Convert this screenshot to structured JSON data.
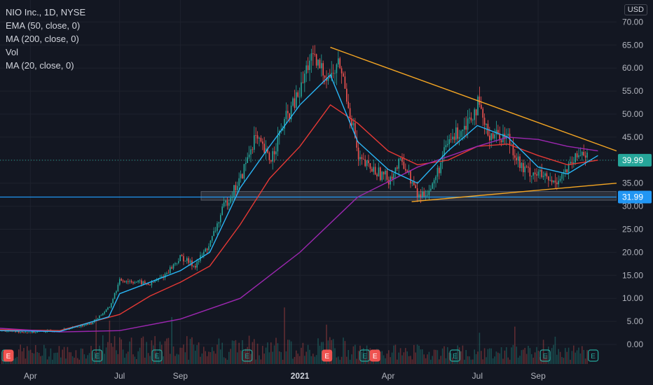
{
  "legend": {
    "title": "NIO Inc., 1D, NYSE",
    "lines": [
      "EMA (50, close, 0)",
      "MA (200, close, 0)",
      "Vol",
      "MA (20, close, 0)"
    ]
  },
  "currency": "USD",
  "colors": {
    "background": "#131722",
    "grid": "#1e222d",
    "up": "#26a69a",
    "down": "#ef5350",
    "ema50": "#e53935",
    "ma200": "#9c27b0",
    "ma20": "#29b6f6",
    "trendline": "#f5a623",
    "hline": "#2196f3",
    "axis_text": "#b2b5be"
  },
  "chart_data": {
    "type": "line",
    "title": "NIO Inc., 1D, NYSE",
    "x_tick_labels": [
      "Apr",
      "Jul",
      "Sep",
      "2021",
      "Apr",
      "Jul",
      "Sep"
    ],
    "x_tick_months": [
      "2020-04",
      "2020-07",
      "2020-09",
      "2021-01",
      "2021-04",
      "2021-07",
      "2021-09"
    ],
    "y_tick_labels": [
      "70.00",
      "65.00",
      "60.00",
      "55.00",
      "50.00",
      "45.00",
      "40.00",
      "35.00",
      "30.00",
      "25.00",
      "20.00",
      "15.00",
      "10.00",
      "5.00",
      "0.00"
    ],
    "ylim": [
      -3.5,
      72
    ],
    "grid": true,
    "price_labels": [
      {
        "label": "39.99",
        "value": 39.99,
        "color": "#26a69a"
      },
      {
        "label": "31.99",
        "value": 31.99,
        "color": "#2196f3"
      }
    ],
    "horizontal_line": 31.99,
    "price_zone": [
      31.3,
      33.2
    ],
    "close_series": {
      "name": "NIO",
      "points": [
        [
          "2020-03",
          3.0
        ],
        [
          "2020-04",
          2.6
        ],
        [
          "2020-05",
          3.1
        ],
        [
          "2020-06",
          4.5
        ],
        [
          "2020-06-20",
          8.0
        ],
        [
          "2020-07",
          14.0
        ],
        [
          "2020-07-20",
          13.5
        ],
        [
          "2020-08",
          13.0
        ],
        [
          "2020-08-15",
          15.0
        ],
        [
          "2020-09",
          19.0
        ],
        [
          "2020-09-15",
          17.0
        ],
        [
          "2020-10",
          22.0
        ],
        [
          "2020-10-15",
          30.0
        ],
        [
          "2020-11",
          36.0
        ],
        [
          "2020-11-15",
          45.0
        ],
        [
          "2020-12",
          40.0
        ],
        [
          "2020-12-15",
          48.0
        ],
        [
          "2021-01",
          55.0
        ],
        [
          "2021-01-10",
          62.0
        ],
        [
          "2021-02",
          58.0
        ],
        [
          "2021-02-10",
          61.0
        ],
        [
          "2021-02-25",
          46.0
        ],
        [
          "2021-03",
          40.0
        ],
        [
          "2021-03-15",
          38.0
        ],
        [
          "2021-04",
          36.0
        ],
        [
          "2021-04-15",
          40.0
        ],
        [
          "2021-05",
          32.0
        ],
        [
          "2021-05-15",
          34.0
        ],
        [
          "2021-06",
          44.0
        ],
        [
          "2021-06-15",
          47.0
        ],
        [
          "2021-07",
          52.0
        ],
        [
          "2021-07-10",
          46.0
        ],
        [
          "2021-08",
          45.0
        ],
        [
          "2021-08-15",
          38.0
        ],
        [
          "2021-09",
          37.0
        ],
        [
          "2021-09-15",
          35.0
        ],
        [
          "2021-10",
          38.0
        ],
        [
          "2021-10-15",
          42.0
        ],
        [
          "2021-11",
          40.0
        ]
      ]
    },
    "indicators": [
      {
        "name": "EMA (50, close, 0)",
        "color": "#e53935",
        "points": [
          [
            "2020-03",
            3.2
          ],
          [
            "2020-05",
            3.0
          ],
          [
            "2020-07",
            6.5
          ],
          [
            "2020-08",
            10.5
          ],
          [
            "2020-09",
            13.5
          ],
          [
            "2020-10",
            17.0
          ],
          [
            "2020-11",
            26.0
          ],
          [
            "2020-12",
            36.0
          ],
          [
            "2021-01",
            43.0
          ],
          [
            "2021-02",
            52.0
          ],
          [
            "2021-03",
            48.0
          ],
          [
            "2021-04",
            42.0
          ],
          [
            "2021-05",
            39.0
          ],
          [
            "2021-06",
            40.0
          ],
          [
            "2021-07",
            43.0
          ],
          [
            "2021-08",
            43.5
          ],
          [
            "2021-09",
            41.0
          ],
          [
            "2021-10",
            39.0
          ],
          [
            "2021-11",
            40.0
          ]
        ]
      },
      {
        "name": "MA (200, close, 0)",
        "color": "#9c27b0",
        "points": [
          [
            "2020-03",
            3.5
          ],
          [
            "2020-05",
            2.7
          ],
          [
            "2020-07",
            3.0
          ],
          [
            "2020-09",
            5.5
          ],
          [
            "2020-11",
            10.0
          ],
          [
            "2021-01",
            20.0
          ],
          [
            "2021-03",
            32.0
          ],
          [
            "2021-05",
            38.5
          ],
          [
            "2021-07",
            43.0
          ],
          [
            "2021-08",
            45.0
          ],
          [
            "2021-09",
            44.5
          ],
          [
            "2021-10",
            43.0
          ],
          [
            "2021-11",
            42.0
          ]
        ]
      },
      {
        "name": "MA (20, close, 0)",
        "color": "#29b6f6",
        "points": [
          [
            "2020-03",
            3.0
          ],
          [
            "2020-05",
            2.8
          ],
          [
            "2020-06-20",
            6.0
          ],
          [
            "2020-07",
            11.0
          ],
          [
            "2020-08",
            13.5
          ],
          [
            "2020-09",
            16.0
          ],
          [
            "2020-10",
            20.0
          ],
          [
            "2020-11",
            34.0
          ],
          [
            "2020-12",
            43.0
          ],
          [
            "2021-01",
            52.0
          ],
          [
            "2021-02",
            58.5
          ],
          [
            "2021-03",
            44.0
          ],
          [
            "2021-04",
            38.0
          ],
          [
            "2021-05",
            35.0
          ],
          [
            "2021-06",
            42.0
          ],
          [
            "2021-07",
            47.5
          ],
          [
            "2021-08",
            45.0
          ],
          [
            "2021-09",
            38.5
          ],
          [
            "2021-10",
            37.0
          ],
          [
            "2021-11",
            41.0
          ]
        ]
      }
    ],
    "trendlines": [
      {
        "name": "upper-trendline",
        "from": [
          "2021-02",
          64.5
        ],
        "to": [
          "2021-11-20",
          42.0
        ]
      },
      {
        "name": "lower-trendline",
        "from": [
          "2021-04-25",
          31.0
        ],
        "to": [
          "2021-11-20",
          35.0
        ]
      }
    ],
    "earnings_markers": [
      "2020-03",
      "2020-06",
      "2020-08",
      "2020-11",
      "2021-03",
      "2021-06",
      "2021-09",
      "2021-10-20"
    ],
    "dividend_markers": [
      "2020-03",
      "2021-01-20",
      "2021-03-10"
    ],
    "marker_letter_e": "E"
  }
}
